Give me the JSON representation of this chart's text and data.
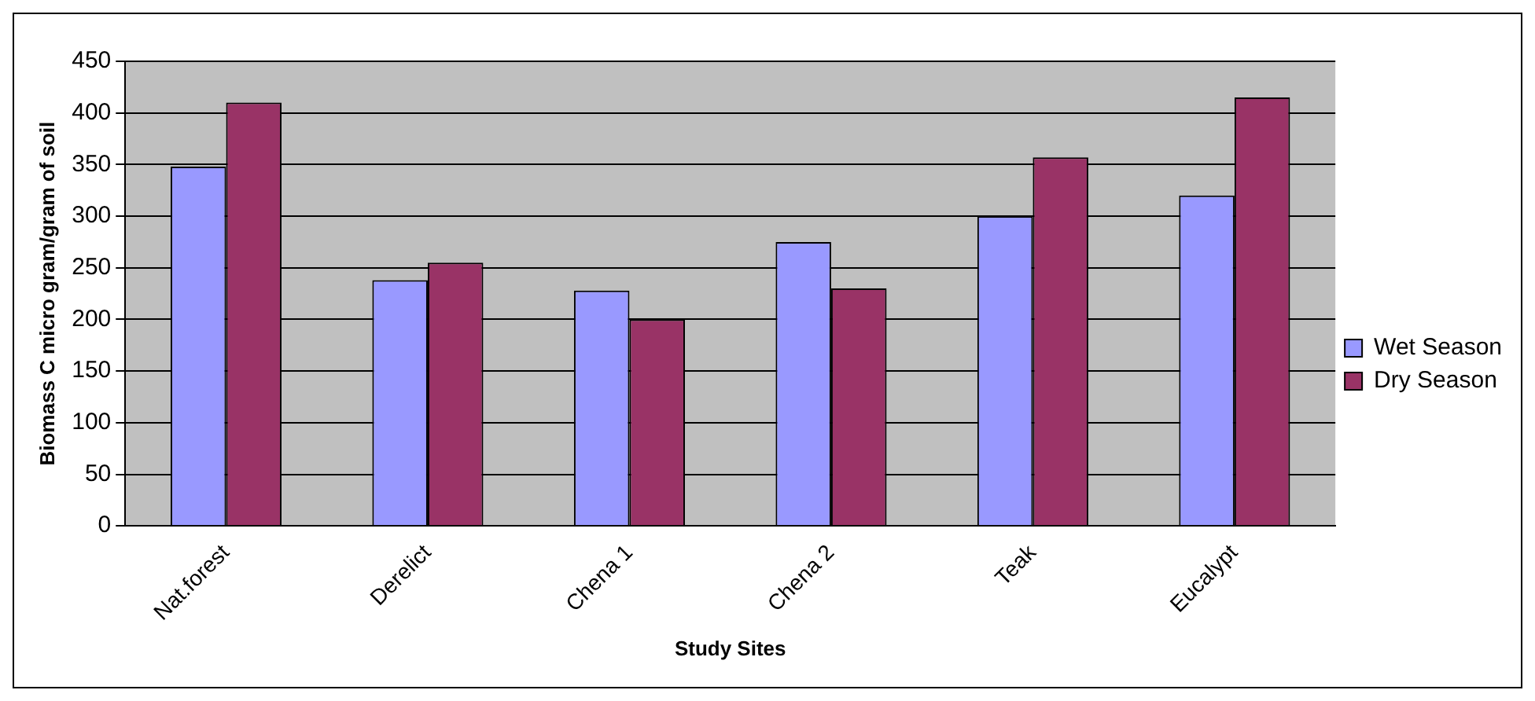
{
  "chart_data": {
    "type": "bar",
    "xlabel": "Study Sites",
    "ylabel": "Biomass C micro gram/gram of soil",
    "categories": [
      "Nat.forest",
      "Derelict",
      "Chena 1",
      "Chena 2",
      "Teak",
      "Eucalypt"
    ],
    "series": [
      {
        "name": "Wet Season",
        "color": "#9999ff",
        "values": [
          348,
          238,
          228,
          275,
          300,
          320
        ]
      },
      {
        "name": "Dry Season",
        "color": "#993366",
        "values": [
          410,
          255,
          200,
          230,
          357,
          415
        ]
      }
    ],
    "ylim": [
      0,
      450
    ],
    "yticks": [
      0,
      50,
      100,
      150,
      200,
      250,
      300,
      350,
      400,
      450
    ],
    "grid": "y",
    "legend": "right"
  }
}
